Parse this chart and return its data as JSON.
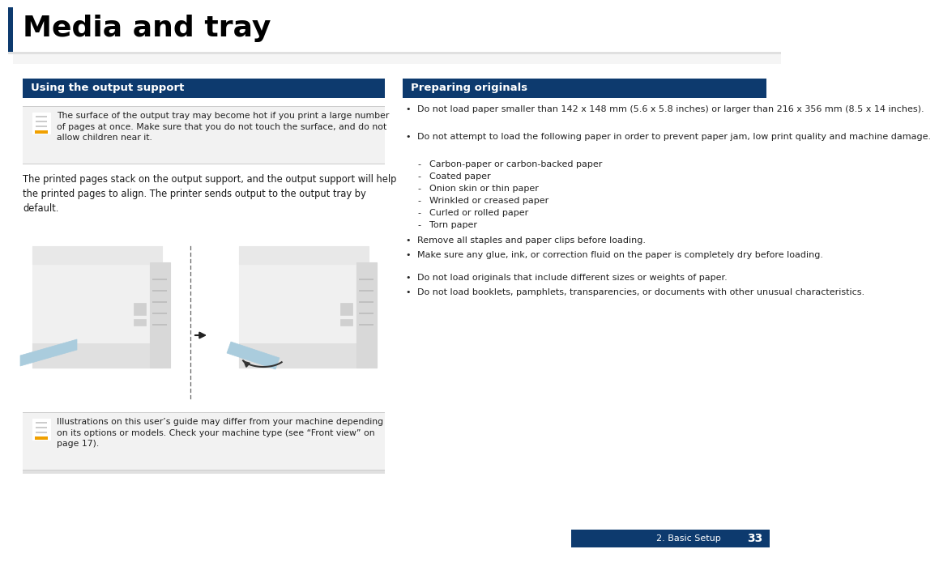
{
  "title": "Media and tray",
  "title_color": "#000000",
  "title_fontsize": 26,
  "header_bg": "#0d3a6e",
  "header_text_color": "#ffffff",
  "header_fontsize": 9.5,
  "left_header": "Using the output support",
  "right_header": "Preparing originals",
  "page_bg": "#ffffff",
  "note_bg": "#f2f2f2",
  "note_text1": "The surface of the output tray may become hot if you print a large number\nof pages at once. Make sure that you do not touch the surface, and do not\nallow children near it.",
  "body_text": "The printed pages stack on the output support, and the output support will help\nthe printed pages to align. The printer sends output to the output tray by\ndefault.",
  "note_text2": "Illustrations on this user’s guide may differ from your machine depending\non its options or models. Check your machine type (see “Front view” on\npage 17).",
  "right_bullet1": "Do not load paper smaller than 142 x 148 mm (5.6 x 5.8 inches) or larger than 216 x 356 mm (8.5 x 14 inches).",
  "right_bullet2": "Do not attempt to load the following paper in order to prevent paper jam, low print quality and machine damage.",
  "sub_bullets": [
    "Carbon-paper or carbon-backed paper",
    "Coated paper",
    "Onion skin or thin paper",
    "Wrinkled or creased paper",
    "Curled or rolled paper",
    "Torn paper"
  ],
  "right_bullet3": "Remove all staples and paper clips before loading.",
  "right_bullet4": "Make sure any glue, ink, or correction fluid on the paper is completely dry before loading.",
  "right_bullet5": "Do not load originals that include different sizes or weights of paper.",
  "right_bullet6": "Do not load booklets, pamphlets, transparencies, or documents with other unusual characteristics.",
  "footer_text": "2. Basic Setup",
  "page_number": "33",
  "footer_bg": "#0d3a6e",
  "body_fontsize": 8.0,
  "left_bar_color": "#0d3a6e",
  "icon_color": "#f0a000",
  "note_border": "#cccccc",
  "sub_bullet_color": "#333333"
}
